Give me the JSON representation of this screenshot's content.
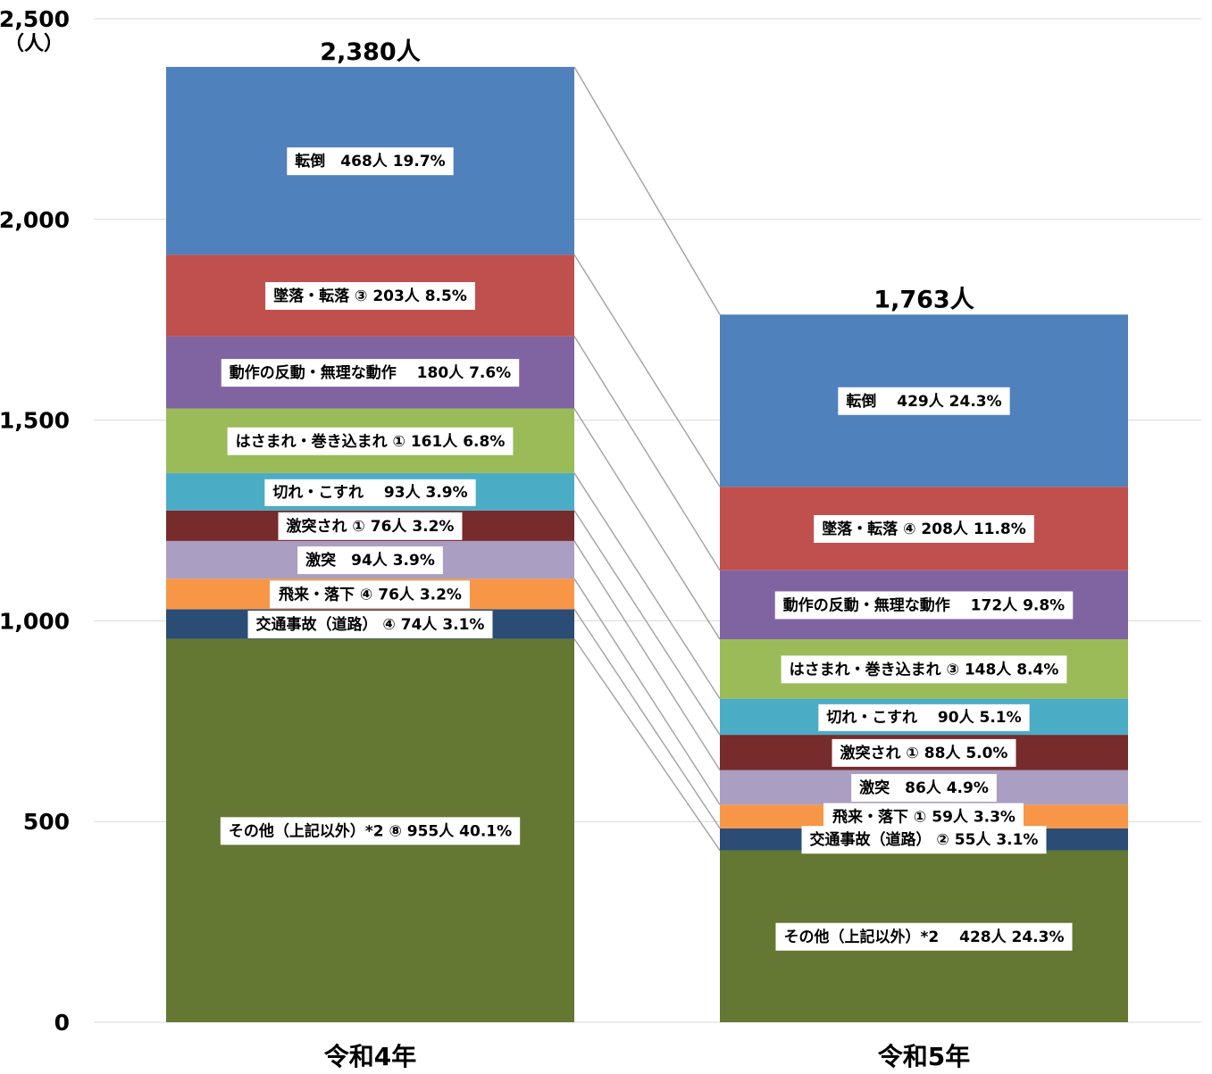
{
  "chart_data": {
    "type": "bar",
    "stacked": true,
    "ylabel": "（人）",
    "ylim": [
      0,
      2500
    ],
    "yticks": [
      0,
      500,
      1000,
      1500,
      2000,
      2500
    ],
    "ytick_labels": [
      "0",
      "500",
      "1,000",
      "1,500",
      "2,000",
      "2,500"
    ],
    "grid": true,
    "legend": "none",
    "categories": [
      "令和4年",
      "令和5年"
    ],
    "totals": [
      2380,
      1763
    ],
    "total_labels": [
      "2,380人",
      "1,763人"
    ],
    "series": [
      {
        "key": "other",
        "color": "#647833",
        "values": [
          955,
          428
        ],
        "labels": [
          "その他（上記以外）*2 ⑧ 955人 40.1%",
          "その他（上記以外）*2　 428人 24.3%"
        ]
      },
      {
        "key": "traffic",
        "color": "#2b4c75",
        "values": [
          74,
          55
        ],
        "labels": [
          "交通事故（道路） ④ 74人 3.1%",
          "交通事故（道路） ② 55人 3.1%"
        ]
      },
      {
        "key": "flying",
        "color": "#f79646",
        "values": [
          76,
          59
        ],
        "labels": [
          "飛来・落下 ④ 76人 3.2%",
          "飛来・落下 ① 59人 3.3%"
        ]
      },
      {
        "key": "collision",
        "color": "#aa9ec2",
        "values": [
          94,
          86
        ],
        "labels": [
          "激突　94人 3.9%",
          "激突　86人 4.9%"
        ]
      },
      {
        "key": "struck",
        "color": "#772b2b",
        "values": [
          76,
          88
        ],
        "labels": [
          "激突され ① 76人 3.2%",
          "激突され ① 88人 5.0%"
        ]
      },
      {
        "key": "cuts",
        "color": "#4bacc6",
        "values": [
          93,
          90
        ],
        "labels": [
          "切れ・こすれ　 93人 3.9%",
          "切れ・こすれ　 90人 5.1%"
        ]
      },
      {
        "key": "caught",
        "color": "#9bbb59",
        "values": [
          161,
          148
        ],
        "labels": [
          "はさまれ・巻き込まれ ① 161人 6.8%",
          "はさまれ・巻き込まれ ③ 148人 8.4%"
        ]
      },
      {
        "key": "reaction",
        "color": "#8064a2",
        "values": [
          180,
          172
        ],
        "labels": [
          "動作の反動・無理な動作　 180人 7.6%",
          "動作の反動・無理な動作　 172人 9.8%"
        ]
      },
      {
        "key": "falls",
        "color": "#c0504d",
        "values": [
          203,
          208
        ],
        "labels": [
          "墜落・転落 ③ 203人 8.5%",
          "墜落・転落 ④ 208人 11.8%"
        ]
      },
      {
        "key": "trip",
        "color": "#4f81bd",
        "values": [
          468,
          429
        ],
        "labels": [
          "転倒　468人 19.7%",
          "転倒　 429人 24.3%"
        ]
      }
    ]
  }
}
